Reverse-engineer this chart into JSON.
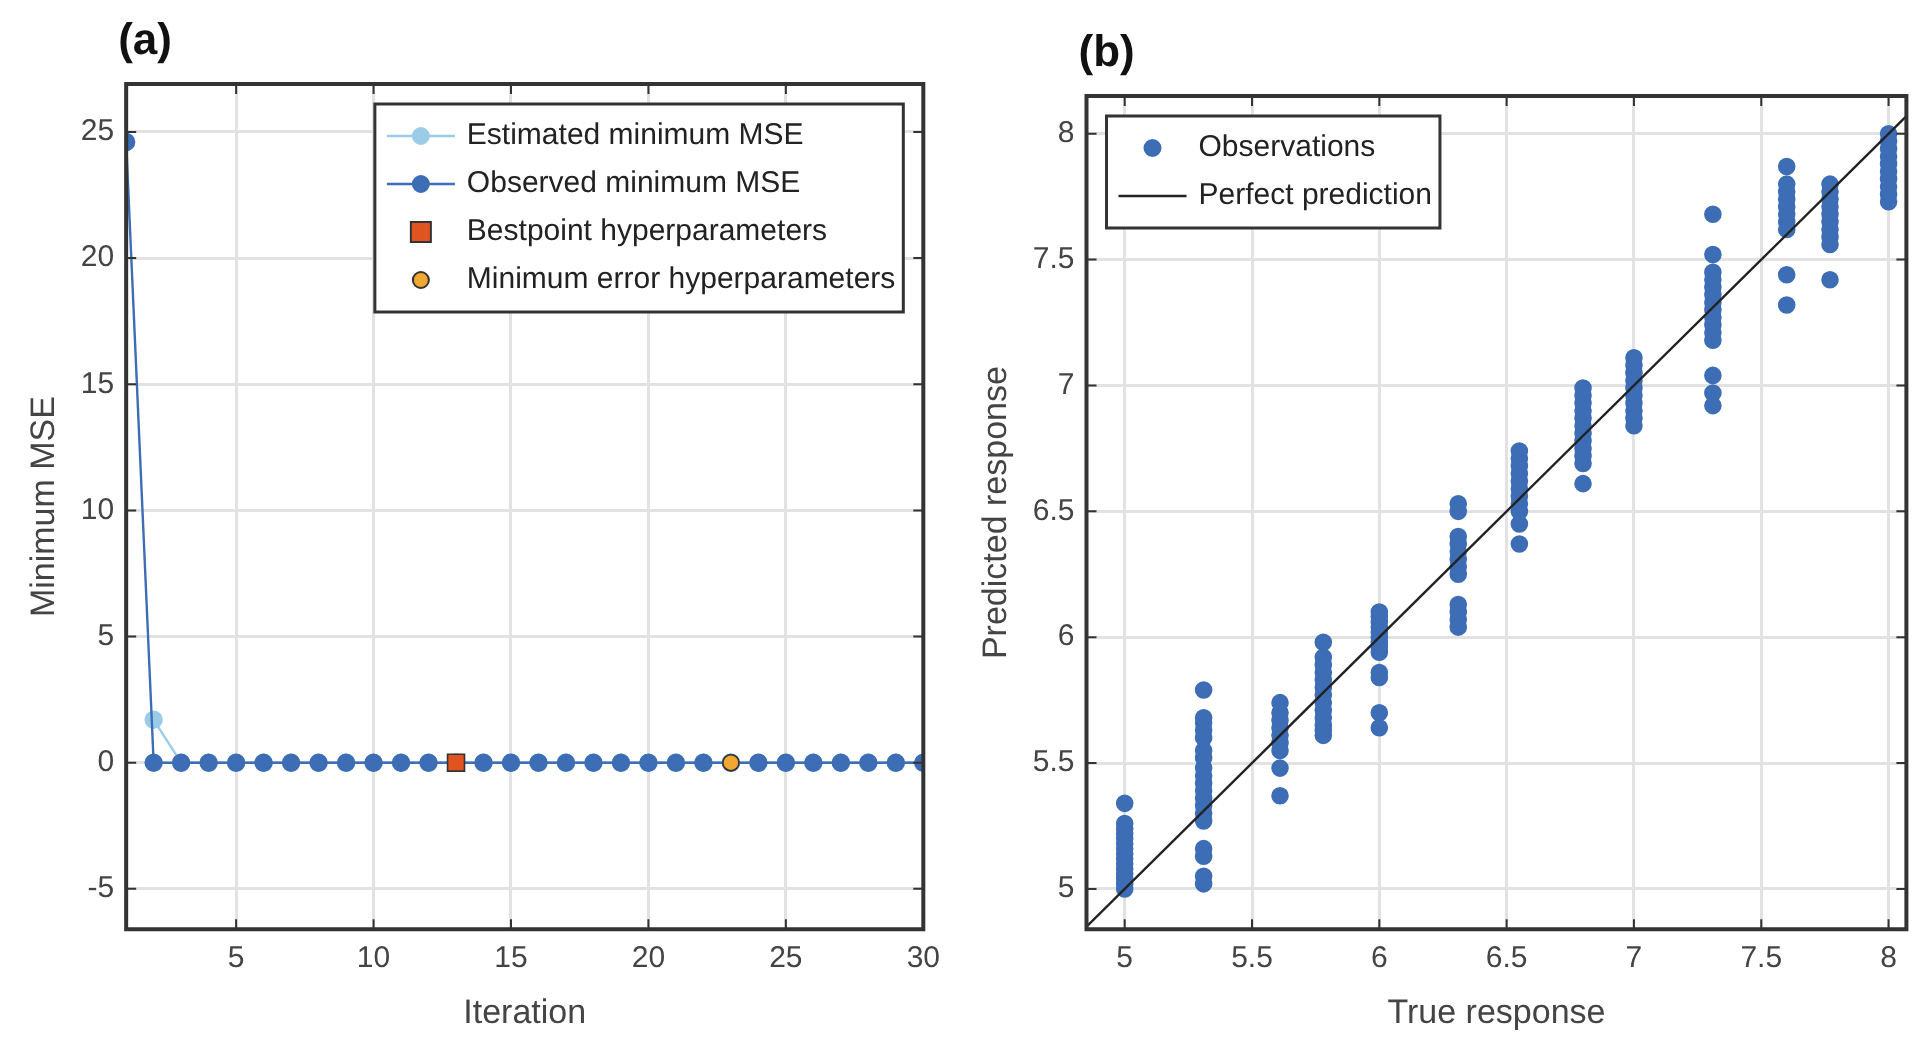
{
  "chart_data": [
    {
      "type": "line",
      "title": "(a)",
      "xlabel": "Iteration",
      "ylabel": "Minimum MSE",
      "x": [
        1,
        2,
        3,
        4,
        5,
        6,
        7,
        8,
        9,
        10,
        11,
        12,
        13,
        14,
        15,
        16,
        17,
        18,
        19,
        20,
        21,
        22,
        23,
        24,
        25,
        26,
        27,
        28,
        29,
        30
      ],
      "xlim": [
        1,
        30
      ],
      "ylim": [
        -6.6,
        26.9
      ],
      "xticks": [
        5,
        10,
        15,
        20,
        25,
        30
      ],
      "yticks": [
        -5,
        0,
        5,
        10,
        15,
        20,
        25
      ],
      "grid": true,
      "legend": "top right",
      "series": [
        {
          "name": "Estimated minimum MSE",
          "color": "#9ccbe8",
          "marker": "circle",
          "values": [
            null,
            1.7,
            0,
            0,
            0,
            0,
            0,
            0,
            0,
            0,
            0,
            0,
            0,
            0,
            0,
            0,
            0,
            0,
            0,
            0,
            0,
            0,
            0,
            0,
            0,
            0,
            0,
            0,
            0,
            0
          ]
        },
        {
          "name": "Observed minimum MSE",
          "color": "#3d6db5",
          "marker": "circle",
          "values": [
            24.6,
            0,
            0,
            0,
            0,
            0,
            0,
            0,
            0,
            0,
            0,
            0,
            0,
            0,
            0,
            0,
            0,
            0,
            0,
            0,
            0,
            0,
            0,
            0,
            0,
            0,
            0,
            0,
            0,
            0
          ]
        },
        {
          "name": "Bestpoint hyperparameters",
          "type": "scatter",
          "color": "#e0541f",
          "marker": "square",
          "x": [
            13
          ],
          "values": [
            0
          ]
        },
        {
          "name": "Minimum error hyperparameters",
          "type": "scatter",
          "color": "#f0a830",
          "marker": "circle",
          "x": [
            23
          ],
          "values": [
            0
          ]
        }
      ]
    },
    {
      "type": "scatter",
      "title": "(b)",
      "xlabel": "True response",
      "ylabel": "Predicted response",
      "xlim": [
        4.85,
        8.07
      ],
      "ylim": [
        4.84,
        8.15
      ],
      "xticks": [
        5,
        5.5,
        6,
        6.5,
        7,
        7.5,
        8
      ],
      "yticks": [
        5,
        5.5,
        6,
        6.5,
        7,
        7.5,
        8
      ],
      "grid": true,
      "legend": "top left",
      "series": [
        {
          "name": "Observations",
          "color": "#3d6db5",
          "marker": "circle",
          "x": [
            5,
            5,
            5,
            5,
            5,
            5,
            5,
            5,
            5,
            5,
            5,
            5,
            5,
            5,
            5,
            5.31,
            5.31,
            5.31,
            5.31,
            5.31,
            5.31,
            5.31,
            5.31,
            5.31,
            5.31,
            5.31,
            5.31,
            5.31,
            5.31,
            5.31,
            5.31,
            5.31,
            5.31,
            5.31,
            5.61,
            5.61,
            5.61,
            5.61,
            5.61,
            5.61,
            5.61,
            5.61,
            5.61,
            5.78,
            5.78,
            5.78,
            5.78,
            5.78,
            5.78,
            5.78,
            5.78,
            5.78,
            5.78,
            5.78,
            5.78,
            5.78,
            6,
            6,
            6,
            6,
            6,
            6,
            6,
            6,
            6,
            6,
            6,
            6,
            6,
            6.31,
            6.31,
            6.31,
            6.31,
            6.31,
            6.31,
            6.31,
            6.31,
            6.31,
            6.31,
            6.31,
            6.31,
            6.55,
            6.55,
            6.55,
            6.55,
            6.55,
            6.55,
            6.55,
            6.55,
            6.55,
            6.55,
            6.55,
            6.8,
            6.8,
            6.8,
            6.8,
            6.8,
            6.8,
            6.8,
            6.8,
            6.8,
            6.8,
            6.8,
            6.8,
            7,
            7,
            7,
            7,
            7,
            7,
            7,
            7,
            7,
            7,
            7.31,
            7.31,
            7.31,
            7.31,
            7.31,
            7.31,
            7.31,
            7.31,
            7.31,
            7.31,
            7.31,
            7.31,
            7.31,
            7.31,
            7.31,
            7.6,
            7.6,
            7.6,
            7.6,
            7.6,
            7.6,
            7.6,
            7.6,
            7.6,
            7.6,
            7.77,
            7.77,
            7.77,
            7.77,
            7.77,
            7.77,
            7.77,
            7.77,
            7.77,
            7.77,
            8,
            8,
            8,
            8,
            8,
            8,
            8,
            8,
            8,
            8
          ],
          "values": [
            5.0,
            5.02,
            5.04,
            5.06,
            5.08,
            5.1,
            5.12,
            5.14,
            5.16,
            5.18,
            5.2,
            5.22,
            5.24,
            5.26,
            5.34,
            5.02,
            5.05,
            5.13,
            5.16,
            5.27,
            5.3,
            5.33,
            5.36,
            5.39,
            5.42,
            5.45,
            5.48,
            5.52,
            5.55,
            5.6,
            5.63,
            5.66,
            5.68,
            5.79,
            5.37,
            5.48,
            5.55,
            5.58,
            5.61,
            5.64,
            5.67,
            5.7,
            5.74,
            5.61,
            5.63,
            5.65,
            5.68,
            5.71,
            5.74,
            5.77,
            5.8,
            5.83,
            5.86,
            5.89,
            5.92,
            5.98,
            5.64,
            5.7,
            5.84,
            5.86,
            5.94,
            5.96,
            5.98,
            6.0,
            6.02,
            6.04,
            6.06,
            6.08,
            6.1,
            6.04,
            6.07,
            6.1,
            6.13,
            6.25,
            6.28,
            6.31,
            6.34,
            6.37,
            6.4,
            6.5,
            6.53,
            6.37,
            6.45,
            6.5,
            6.53,
            6.56,
            6.59,
            6.62,
            6.65,
            6.68,
            6.71,
            6.74,
            6.61,
            6.69,
            6.72,
            6.75,
            6.78,
            6.81,
            6.84,
            6.87,
            6.9,
            6.93,
            6.96,
            6.99,
            6.84,
            6.87,
            6.9,
            6.93,
            6.96,
            6.99,
            7.02,
            7.05,
            7.08,
            7.11,
            6.92,
            6.97,
            7.04,
            7.18,
            7.21,
            7.24,
            7.27,
            7.3,
            7.33,
            7.36,
            7.39,
            7.42,
            7.45,
            7.52,
            7.68,
            7.32,
            7.44,
            7.62,
            7.65,
            7.68,
            7.71,
            7.74,
            7.77,
            7.8,
            7.87,
            7.42,
            7.56,
            7.59,
            7.62,
            7.65,
            7.68,
            7.71,
            7.74,
            7.77,
            7.8,
            7.73,
            7.76,
            7.79,
            7.82,
            7.85,
            7.88,
            7.91,
            7.94,
            7.97,
            8.0
          ]
        },
        {
          "name": "Perfect prediction",
          "type": "line",
          "color": "#222222",
          "marker": "none",
          "x": [
            4.85,
            8.07
          ],
          "values": [
            4.85,
            8.07
          ]
        }
      ]
    }
  ]
}
